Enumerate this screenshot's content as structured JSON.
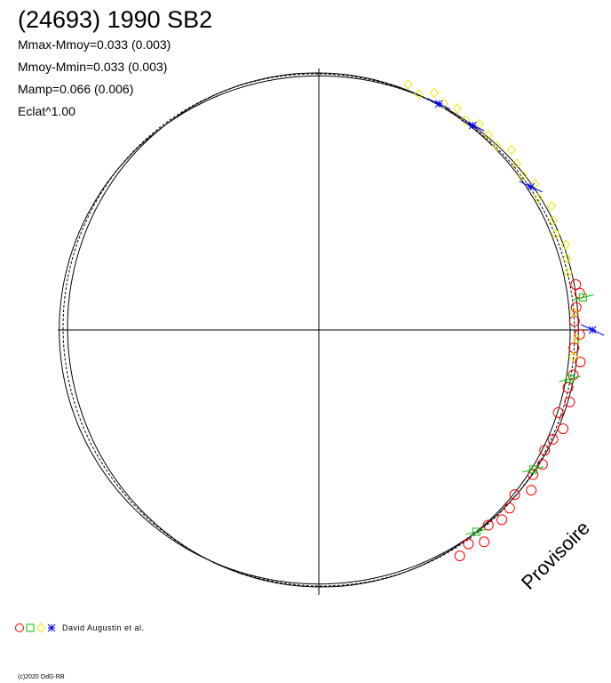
{
  "header": {
    "title": "(24693) 1990 SB2",
    "stats": [
      "Mmax-Mmoy=0.033 (0.003)",
      "Mmoy-Mmin=0.033 (0.003)",
      "Mamp=0.066 (0.006)",
      "Eclat^1.00"
    ]
  },
  "legend": {
    "text": "David Augustin et al."
  },
  "watermark": "Provisoire",
  "copyright": "(c)2020 OdG-RB",
  "colors": {
    "red": "#ff0000",
    "green": "#00c000",
    "yellow": "#e8e800",
    "blue": "#0000ff",
    "curve": "#000000"
  },
  "chart_data": {
    "type": "polar-lightcurve",
    "title": "(24693) 1990 SB2",
    "amplitude_mag": 0.066,
    "grid": false,
    "series": [
      {
        "marker": "circle",
        "color": "red",
        "points": [
          [
            170,
            1.02
          ],
          [
            172,
            1.03
          ],
          [
            175,
            1.01
          ],
          [
            178,
            1.0
          ],
          [
            181,
            1.02
          ],
          [
            184,
            1.0
          ],
          [
            187,
            1.03
          ],
          [
            190,
            1.01
          ],
          [
            193,
            1.0
          ],
          [
            196,
            1.02
          ],
          [
            199,
            0.99
          ],
          [
            202,
            1.03
          ],
          [
            205,
            1.01
          ],
          [
            208,
            1.0
          ],
          [
            211,
            1.02
          ],
          [
            214,
            1.01
          ],
          [
            217,
            1.04
          ],
          [
            220,
            1.0
          ],
          [
            223,
            1.02
          ],
          [
            226,
            1.03
          ],
          [
            229,
            1.01
          ],
          [
            232,
            1.05
          ],
          [
            235,
            1.02
          ],
          [
            238,
            1.04
          ]
        ]
      },
      {
        "marker": "square",
        "color": "green",
        "points": [
          [
            173,
            1.04
          ],
          [
            191,
            1.0
          ],
          [
            213,
            1.0
          ],
          [
            232,
            1.0
          ]
        ]
      },
      {
        "marker": "diamond",
        "color": "yellow",
        "points": [
          [
            110,
            1.02
          ],
          [
            113,
            1.0
          ],
          [
            116,
            1.03
          ],
          [
            119,
            1.01
          ],
          [
            122,
            1.02
          ],
          [
            125,
            1.0
          ],
          [
            128,
            1.02
          ],
          [
            131,
            1.01
          ],
          [
            134,
            1.0
          ],
          [
            137,
            1.03
          ],
          [
            140,
            1.01
          ],
          [
            143,
            1.0
          ],
          [
            146,
            1.02
          ],
          [
            149,
            1.0
          ],
          [
            152,
            1.03
          ],
          [
            155,
            1.01
          ],
          [
            158,
            1.0
          ],
          [
            161,
            1.02
          ],
          [
            164,
            1.01
          ],
          [
            167,
            1.0
          ],
          [
            176,
            1.0
          ],
          [
            182,
            1.01
          ],
          [
            186,
            1.0
          ]
        ]
      },
      {
        "marker": "star",
        "color": "blue",
        "points": [
          [
            118,
            1.0
          ],
          [
            127,
            1.0
          ],
          [
            146,
            1.0
          ],
          [
            180,
            1.07
          ]
        ]
      }
    ]
  }
}
